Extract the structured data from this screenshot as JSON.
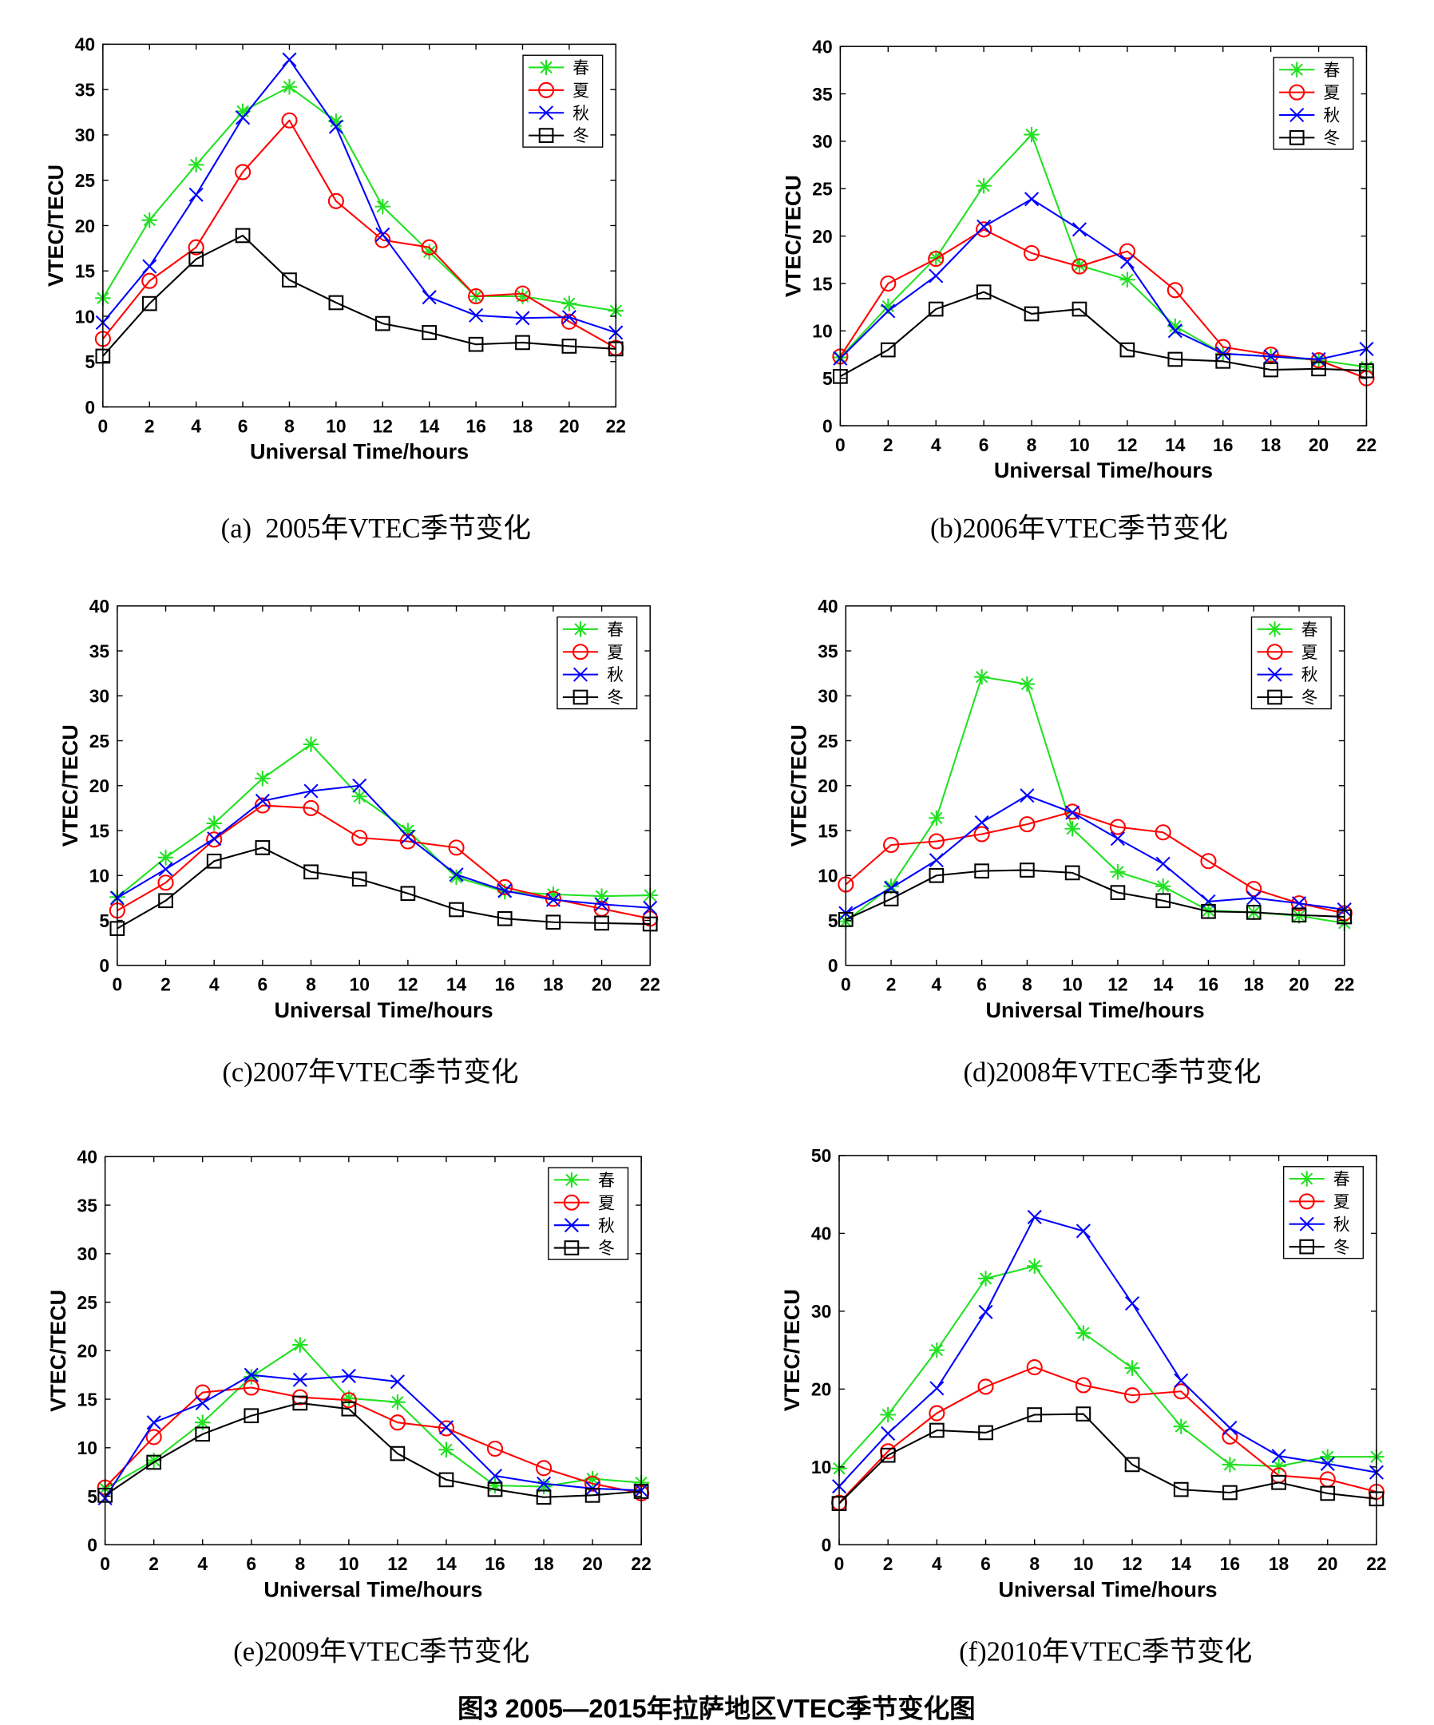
{
  "figure_title": "图3 2005—2015年拉萨地区VTEC季节变化图",
  "chart_data": [
    {
      "type": "line",
      "caption": "(a)  2005年VTEC季节变化",
      "xlabel": "Universal Time/hours",
      "ylabel": "VTEC/TECU",
      "xlim": [
        0,
        22
      ],
      "ylim": [
        0,
        40
      ],
      "xticks": [
        0,
        2,
        4,
        6,
        8,
        10,
        12,
        14,
        16,
        18,
        20,
        22
      ],
      "yticks": [
        0,
        5,
        10,
        15,
        20,
        25,
        30,
        35,
        40
      ],
      "grid": false,
      "legend": "top-right",
      "x": [
        0,
        2,
        4,
        6,
        8,
        10,
        12,
        14,
        16,
        18,
        20,
        22
      ],
      "series": [
        {
          "name": "春",
          "color": "#22e022",
          "marker": "asterisk",
          "values": [
            12.0,
            20.6,
            26.7,
            32.6,
            35.3,
            31.5,
            22.1,
            17.1,
            12.2,
            12.2,
            11.4,
            10.6
          ]
        },
        {
          "name": "夏",
          "color": "#ff0000",
          "marker": "circle",
          "values": [
            7.5,
            13.9,
            17.6,
            25.9,
            31.6,
            22.7,
            18.4,
            17.6,
            12.2,
            12.5,
            9.4,
            6.5
          ]
        },
        {
          "name": "秋",
          "color": "#0000ff",
          "marker": "cross",
          "values": [
            9.3,
            15.5,
            23.4,
            31.9,
            38.3,
            30.9,
            19.0,
            12.1,
            10.1,
            9.8,
            9.9,
            8.2
          ]
        },
        {
          "name": "冬",
          "color": "#000000",
          "marker": "square",
          "values": [
            5.6,
            11.4,
            16.3,
            18.9,
            14.0,
            11.5,
            9.2,
            8.2,
            6.9,
            7.1,
            6.7,
            6.4
          ]
        }
      ]
    },
    {
      "type": "line",
      "caption": "(b)2006年VTEC季节变化",
      "xlabel": "Universal Time/hours",
      "ylabel": "VTEC/TECU",
      "xlim": [
        0,
        22
      ],
      "ylim": [
        0,
        40
      ],
      "xticks": [
        0,
        2,
        4,
        6,
        8,
        10,
        12,
        14,
        16,
        18,
        20,
        22
      ],
      "yticks": [
        0,
        5,
        10,
        15,
        20,
        25,
        30,
        35,
        40
      ],
      "grid": false,
      "legend": "top-right",
      "x": [
        0,
        2,
        4,
        6,
        8,
        10,
        12,
        14,
        16,
        18,
        20,
        22
      ],
      "series": [
        {
          "name": "春",
          "color": "#22e022",
          "marker": "asterisk",
          "values": [
            7.2,
            12.6,
            17.7,
            25.3,
            30.7,
            16.9,
            15.4,
            10.5,
            7.6,
            7.3,
            6.9,
            6.2
          ]
        },
        {
          "name": "夏",
          "color": "#ff0000",
          "marker": "circle",
          "values": [
            7.3,
            15.0,
            17.6,
            20.7,
            18.2,
            16.8,
            18.4,
            14.3,
            8.3,
            7.5,
            6.9,
            5.0
          ]
        },
        {
          "name": "秋",
          "color": "#0000ff",
          "marker": "cross",
          "values": [
            7.1,
            12.1,
            15.8,
            21.0,
            23.9,
            20.7,
            17.3,
            10.0,
            7.6,
            7.3,
            7.0,
            8.1
          ]
        },
        {
          "name": "冬",
          "color": "#000000",
          "marker": "square",
          "values": [
            5.2,
            8.0,
            12.3,
            14.1,
            11.8,
            12.3,
            8.0,
            7.0,
            6.8,
            5.9,
            6.0,
            5.8
          ]
        }
      ]
    },
    {
      "type": "line",
      "caption": "(c)2007年VTEC季节变化",
      "xlabel": "Universal Time/hours",
      "ylabel": "VTEC/TECU",
      "xlim": [
        0,
        22
      ],
      "ylim": [
        0,
        40
      ],
      "xticks": [
        0,
        2,
        4,
        6,
        8,
        10,
        12,
        14,
        16,
        18,
        20,
        22
      ],
      "yticks": [
        0,
        5,
        10,
        15,
        20,
        25,
        30,
        35,
        40
      ],
      "grid": false,
      "legend": "top-right",
      "x": [
        0,
        2,
        4,
        6,
        8,
        10,
        12,
        14,
        16,
        18,
        20,
        22
      ],
      "series": [
        {
          "name": "春",
          "color": "#22e022",
          "marker": "asterisk",
          "values": [
            7.6,
            12.0,
            15.8,
            20.8,
            24.6,
            18.8,
            15.0,
            9.8,
            8.2,
            7.9,
            7.7,
            7.8
          ]
        },
        {
          "name": "夏",
          "color": "#ff0000",
          "marker": "circle",
          "values": [
            6.1,
            9.2,
            14.0,
            17.8,
            17.5,
            14.2,
            13.8,
            13.1,
            8.7,
            7.4,
            6.3,
            5.2
          ]
        },
        {
          "name": "秋",
          "color": "#0000ff",
          "marker": "cross",
          "values": [
            7.5,
            10.7,
            14.1,
            18.3,
            19.4,
            20.0,
            14.3,
            10.1,
            8.3,
            7.3,
            6.8,
            6.4
          ]
        },
        {
          "name": "冬",
          "color": "#000000",
          "marker": "square",
          "values": [
            4.1,
            7.2,
            11.6,
            13.1,
            10.4,
            9.6,
            8.0,
            6.2,
            5.2,
            4.8,
            4.7,
            4.6
          ]
        }
      ]
    },
    {
      "type": "line",
      "caption": "(d)2008年VTEC季节变化",
      "xlabel": "Universal Time/hours",
      "ylabel": "VTEC/TECU",
      "xlim": [
        0,
        22
      ],
      "ylim": [
        0,
        40
      ],
      "xticks": [
        0,
        2,
        4,
        6,
        8,
        10,
        12,
        14,
        16,
        18,
        20,
        22
      ],
      "yticks": [
        0,
        5,
        10,
        15,
        20,
        25,
        30,
        35,
        40
      ],
      "grid": false,
      "legend": "top-right",
      "x": [
        0,
        2,
        4,
        6,
        8,
        10,
        12,
        14,
        16,
        18,
        20,
        22
      ],
      "series": [
        {
          "name": "春",
          "color": "#22e022",
          "marker": "asterisk",
          "values": [
            4.9,
            8.8,
            16.4,
            32.1,
            31.3,
            15.2,
            10.4,
            8.8,
            6.1,
            5.9,
            5.5,
            4.7
          ]
        },
        {
          "name": "夏",
          "color": "#ff0000",
          "marker": "circle",
          "values": [
            9.0,
            13.4,
            13.8,
            14.6,
            15.7,
            17.1,
            15.4,
            14.8,
            11.6,
            8.5,
            6.9,
            5.8
          ]
        },
        {
          "name": "秋",
          "color": "#0000ff",
          "marker": "cross",
          "values": [
            5.8,
            8.6,
            11.7,
            15.9,
            18.9,
            17.0,
            14.1,
            11.3,
            7.1,
            7.5,
            6.9,
            6.2
          ]
        },
        {
          "name": "冬",
          "color": "#000000",
          "marker": "square",
          "values": [
            5.1,
            7.4,
            10.0,
            10.5,
            10.6,
            10.3,
            8.1,
            7.2,
            6.0,
            5.9,
            5.6,
            5.4
          ]
        }
      ]
    },
    {
      "type": "line",
      "caption": "(e)2009年VTEC季节变化",
      "xlabel": "Universal Time/hours",
      "ylabel": "VTEC/TECU",
      "xlim": [
        0,
        22
      ],
      "ylim": [
        0,
        40
      ],
      "xticks": [
        0,
        2,
        4,
        6,
        8,
        10,
        12,
        14,
        16,
        18,
        20,
        22
      ],
      "yticks": [
        0,
        5,
        10,
        15,
        20,
        25,
        30,
        35,
        40
      ],
      "grid": false,
      "legend": "top-right",
      "x": [
        0,
        2,
        4,
        6,
        8,
        10,
        12,
        14,
        16,
        18,
        20,
        22
      ],
      "series": [
        {
          "name": "春",
          "color": "#22e022",
          "marker": "asterisk",
          "values": [
            5.8,
            8.7,
            12.6,
            17.3,
            20.6,
            15.1,
            14.7,
            9.8,
            6.1,
            6.0,
            6.8,
            6.4
          ]
        },
        {
          "name": "夏",
          "color": "#ff0000",
          "marker": "circle",
          "values": [
            5.9,
            11.1,
            15.7,
            16.2,
            15.2,
            14.9,
            12.6,
            12.0,
            9.9,
            7.9,
            6.3,
            5.3
          ]
        },
        {
          "name": "秋",
          "color": "#0000ff",
          "marker": "cross",
          "values": [
            4.8,
            12.6,
            14.6,
            17.5,
            17.0,
            17.4,
            16.8,
            12.1,
            7.1,
            6.3,
            5.8,
            5.6
          ]
        },
        {
          "name": "冬",
          "color": "#000000",
          "marker": "square",
          "values": [
            5.1,
            8.5,
            11.4,
            13.3,
            14.6,
            14.0,
            9.4,
            6.7,
            5.7,
            4.9,
            5.1,
            5.5
          ]
        }
      ]
    },
    {
      "type": "line",
      "caption": "(f)2010年VTEC季节变化",
      "xlabel": "Universal Time/hours",
      "ylabel": "VTEC/TECU",
      "xlim": [
        0,
        22
      ],
      "ylim": [
        0,
        50
      ],
      "xticks": [
        0,
        2,
        4,
        6,
        8,
        10,
        12,
        14,
        16,
        18,
        20,
        22
      ],
      "yticks": [
        0,
        10,
        20,
        30,
        40,
        50
      ],
      "grid": false,
      "legend": "top-right",
      "x": [
        0,
        2,
        4,
        6,
        8,
        10,
        12,
        14,
        16,
        18,
        20,
        22
      ],
      "series": [
        {
          "name": "春",
          "color": "#22e022",
          "marker": "asterisk",
          "values": [
            9.8,
            16.7,
            25.0,
            34.2,
            35.8,
            27.2,
            22.7,
            15.2,
            10.3,
            10.1,
            11.3,
            11.3
          ]
        },
        {
          "name": "夏",
          "color": "#ff0000",
          "marker": "circle",
          "values": [
            5.4,
            12.0,
            16.9,
            20.3,
            22.8,
            20.5,
            19.2,
            19.7,
            13.9,
            8.9,
            8.4,
            6.8
          ]
        },
        {
          "name": "秋",
          "color": "#0000ff",
          "marker": "cross",
          "values": [
            7.5,
            14.3,
            20.1,
            29.9,
            42.1,
            40.3,
            31.0,
            21.1,
            15.0,
            11.4,
            10.4,
            9.3
          ]
        },
        {
          "name": "冬",
          "color": "#000000",
          "marker": "square",
          "values": [
            5.3,
            11.5,
            14.7,
            14.4,
            16.7,
            16.8,
            10.3,
            7.1,
            6.7,
            8.0,
            6.6,
            5.9
          ]
        }
      ]
    }
  ]
}
